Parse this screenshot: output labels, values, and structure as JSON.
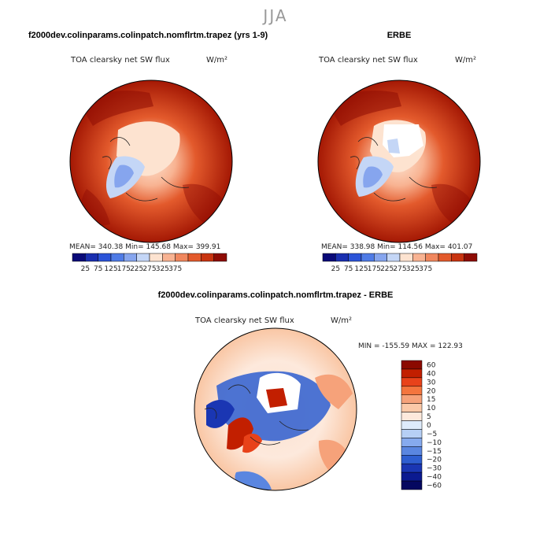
{
  "page_title": "JJA",
  "colors": {
    "seq": [
      "#0a0a78",
      "#1a2fb0",
      "#2c54d8",
      "#4f7be6",
      "#86a5ee",
      "#c4d6f6",
      "#fde3d0",
      "#f8b392",
      "#f0875e",
      "#e35a2c",
      "#c83410",
      "#8e0c04"
    ],
    "div": [
      "#8b0a00",
      "#c21f00",
      "#e8421a",
      "#f4753e",
      "#f6a27a",
      "#fbc9a8",
      "#fde9dc",
      "#deebfb",
      "#b6cff5",
      "#86aaee",
      "#5a86e0",
      "#2e5ed0",
      "#1a36b3",
      "#0b1a90",
      "#050860"
    ]
  },
  "chart_data": [
    {
      "type": "heatmap",
      "name": "model",
      "title": "f2000dev.colinparams.colinpatch.nomflrtm.trapez (yrs 1-9)",
      "variable": "TOA clearsky net SW flux",
      "units": "W/m²",
      "stats": "MEAN= 340.38   Min= 145.68   Max= 399.91",
      "colorbar_ticks": [
        "25",
        "75",
        "125",
        "175",
        "225",
        "275",
        "325",
        "375"
      ],
      "colorbar_levels": [
        0,
        25,
        50,
        75,
        100,
        125,
        150,
        175,
        225,
        275,
        325,
        375,
        400
      ]
    },
    {
      "type": "heatmap",
      "name": "obs",
      "title": "ERBE",
      "variable": "TOA clearsky net SW flux",
      "units": "W/m²",
      "stats": "MEAN= 338.98   Min= 114.56   Max= 401.07",
      "colorbar_ticks": [
        "25",
        "75",
        "125",
        "175",
        "225",
        "275",
        "325",
        "375"
      ],
      "colorbar_levels": [
        0,
        25,
        50,
        75,
        100,
        125,
        150,
        175,
        225,
        275,
        325,
        375,
        400
      ]
    },
    {
      "type": "heatmap",
      "name": "diff",
      "title": "f2000dev.colinparams.colinpatch.nomflrtm.trapez - ERBE",
      "variable": "TOA clearsky net SW flux",
      "units": "W/m²",
      "stats": "MIN = -155.59  MAX = 122.93",
      "colorbar_ticks": [
        "60",
        "40",
        "30",
        "20",
        "15",
        "10",
        "5",
        "0",
        "−5",
        "−10",
        "−15",
        "−20",
        "−30",
        "−40",
        "−60"
      ]
    }
  ]
}
